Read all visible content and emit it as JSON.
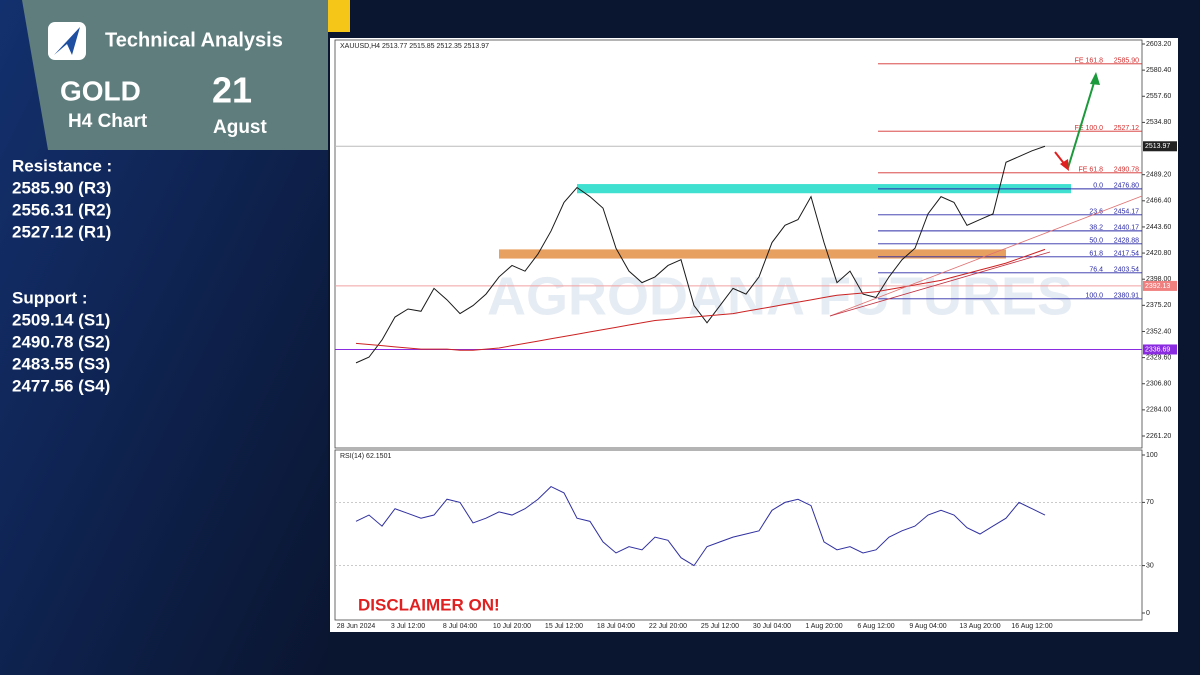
{
  "header": {
    "title": "Technical Analysis",
    "symbol": "GOLD",
    "timeframe": "H4 Chart",
    "day": "21",
    "month": "Agust"
  },
  "resistance": {
    "title": "Resistance :",
    "items": [
      "2585.90 (R3)",
      "2556.31 (R2)",
      "2527.12 (R1)"
    ]
  },
  "support": {
    "title": "Support :",
    "items": [
      "2509.14 (S1)",
      "2490.78 (S2)",
      "2483.55 (S3)",
      "2477.56 (S4)"
    ]
  },
  "disclaimer": "DISCLAIMER ON!",
  "watermark": "AGRODANA FUTURES",
  "chart_data": [
    {
      "type": "line",
      "title": "XAUUSD,H4  2513.77 2515.85 2512.35 2513.97",
      "ylim": [
        2261.2,
        2603.2
      ],
      "yticks": [
        {
          "value": 2603.2,
          "label": "2603.20"
        },
        {
          "value": 2580.4,
          "label": "2580.40"
        },
        {
          "value": 2557.6,
          "label": "2557.60"
        },
        {
          "value": 2534.8,
          "label": "2534.80"
        },
        {
          "value": 2489.2,
          "label": "2489.20"
        },
        {
          "value": 2466.4,
          "label": "2466.40"
        },
        {
          "value": 2443.6,
          "label": "2443.60"
        },
        {
          "value": 2420.8,
          "label": "2420.80"
        },
        {
          "value": 2398.0,
          "label": "2398.00"
        },
        {
          "value": 2375.2,
          "label": "2375.20"
        },
        {
          "value": 2352.4,
          "label": "2352.40"
        },
        {
          "value": 2329.6,
          "label": "2329.60"
        },
        {
          "value": 2306.8,
          "label": "2306.80"
        },
        {
          "value": 2284.0,
          "label": "2284.00"
        },
        {
          "value": 2261.2,
          "label": "2261.20"
        }
      ],
      "series": [
        {
          "color": "#1a1a1a",
          "values": [
            2325,
            2330,
            2345,
            2365,
            2372,
            2370,
            2390,
            2380,
            2368,
            2375,
            2385,
            2400,
            2410,
            2405,
            2420,
            2440,
            2465,
            2478,
            2470,
            2460,
            2425,
            2405,
            2395,
            2400,
            2410,
            2415,
            2375,
            2360,
            2375,
            2390,
            2385,
            2400,
            2430,
            2445,
            2450,
            2470,
            2430,
            2395,
            2405,
            2385,
            2382,
            2400,
            2415,
            2425,
            2455,
            2470,
            2465,
            2445,
            2450,
            2455,
            2500,
            2505,
            2510,
            2514
          ]
        },
        {
          "color": "#cc2222",
          "values": [
            2342,
            2341,
            2340,
            2339,
            2338,
            2337,
            2337,
            2337,
            2336,
            2336,
            2337,
            2338,
            2340,
            2342,
            2344,
            2346,
            2348,
            2350,
            2352,
            2354,
            2356,
            2358,
            2360,
            2362,
            2363,
            2364,
            2365,
            2366,
            2367,
            2368,
            2370,
            2372,
            2374,
            2376,
            2378,
            2380,
            2382,
            2384,
            2385,
            2386,
            2387,
            2389,
            2391,
            2393,
            2395,
            2397,
            2400,
            2403,
            2406,
            2409,
            2412,
            2416,
            2420,
            2424
          ]
        }
      ],
      "levels": [
        {
          "value": 2585.9,
          "name": "FE 161.8",
          "label": "2585.90",
          "color": "#d32f2f"
        },
        {
          "value": 2527.12,
          "name": "FE 100.0",
          "label": "2527.12",
          "color": "#d32f2f"
        },
        {
          "value": 2490.78,
          "name": "FE 61.8",
          "label": "2490.78",
          "color": "#d32f2f"
        },
        {
          "value": 2476.8,
          "name": "0.0",
          "label": "2476.80",
          "color": "#2a2aa8"
        },
        {
          "value": 2454.17,
          "name": "23.6",
          "label": "2454.17",
          "color": "#2a2aa8"
        },
        {
          "value": 2440.17,
          "name": "38.2",
          "label": "2440.17",
          "color": "#2a2aa8"
        },
        {
          "value": 2428.88,
          "name": "50.0",
          "label": "2428.88",
          "color": "#2a2aa8"
        },
        {
          "value": 2417.54,
          "name": "61.8",
          "label": "2417.54",
          "color": "#2a2aa8"
        },
        {
          "value": 2403.54,
          "name": "76.4",
          "label": "2403.54",
          "color": "#2a2aa8"
        },
        {
          "value": 2380.91,
          "name": "100.0",
          "label": "2380.91",
          "color": "#2a2aa8"
        }
      ],
      "price_lines": [
        {
          "value": 2513.97,
          "label": "2513.97",
          "color": "#bbbbbb",
          "box": "#222222"
        },
        {
          "value": 2392.13,
          "label": "2392.13",
          "color": "#f0a0a0",
          "box": "#f08080"
        },
        {
          "value": 2336.69,
          "label": "2336.69",
          "color": "#8a2be2",
          "box": "#8a2be2"
        }
      ],
      "zones": [
        {
          "from": 2473,
          "to": 2481,
          "x_start": 17,
          "x_end": 55,
          "color": "#40e0d0"
        },
        {
          "from": 2416,
          "to": 2424,
          "x_start": 11,
          "x_end": 50,
          "color": "#e8a060"
        }
      ]
    },
    {
      "type": "line",
      "title": "RSI(14) 62.1501",
      "ylim": [
        0,
        100
      ],
      "yticks": [
        100,
        70,
        30,
        0
      ],
      "categories": [
        "28 Jun 2024",
        null,
        null,
        null,
        "3 Jul 12:00",
        null,
        null,
        null,
        "8 Jul 04:00",
        null,
        null,
        null,
        "10 Jul 20:00",
        null,
        null,
        null,
        "15 Jul 12:00",
        null,
        null,
        null,
        "18 Jul 04:00",
        null,
        null,
        null,
        "22 Jul 20:00",
        null,
        null,
        null,
        "25 Jul 12:00",
        null,
        null,
        null,
        "30 Jul 04:00",
        null,
        null,
        null,
        "1 Aug 20:00",
        null,
        null,
        null,
        "6 Aug 12:00",
        null,
        null,
        null,
        "9 Aug 04:00",
        null,
        null,
        null,
        "13 Aug 20:00",
        null,
        null,
        null,
        "16 Aug 12:00",
        null
      ],
      "series": [
        {
          "color": "#3030a0",
          "values": [
            58,
            62,
            55,
            66,
            63,
            60,
            62,
            72,
            70,
            57,
            60,
            64,
            62,
            66,
            72,
            80,
            76,
            60,
            58,
            45,
            38,
            42,
            40,
            48,
            46,
            35,
            30,
            42,
            45,
            48,
            50,
            52,
            65,
            70,
            72,
            68,
            45,
            40,
            42,
            38,
            40,
            48,
            52,
            55,
            62,
            65,
            62,
            54,
            50,
            55,
            60,
            70,
            66,
            62
          ]
        }
      ]
    }
  ]
}
